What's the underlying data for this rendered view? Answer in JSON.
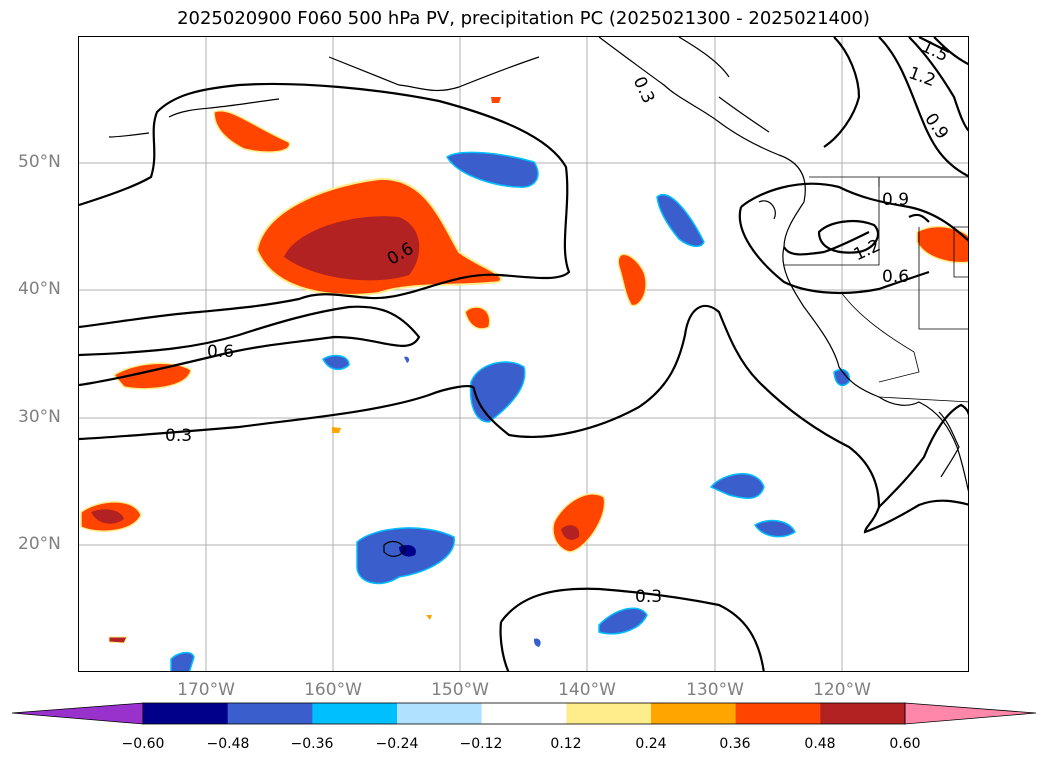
{
  "title": "2025020900 F060 500 hPa PV, precipitation PC (2025021300 - 2025021400)",
  "lat_labels": [
    "50°N",
    "40°N",
    "30°N",
    "20°N"
  ],
  "lon_labels": [
    "170°W",
    "160°W",
    "150°W",
    "140°W",
    "130°W",
    "120°W"
  ],
  "contour_labels": [
    "0.6",
    "0.6",
    "0.3",
    "0.3",
    "0.9",
    "1.2",
    "0.6",
    "0.3",
    "1.5",
    "1.2",
    "0.9"
  ],
  "colorbar": {
    "ticks": [
      "−0.60",
      "−0.48",
      "−0.36",
      "−0.24",
      "−0.12",
      "0.12",
      "0.24",
      "0.36",
      "0.48",
      "0.60"
    ],
    "colors": [
      "#9932CC",
      "#00008B",
      "#3A5FCD",
      "#00BFFF",
      "#B0E2FF",
      "#FFFFFF",
      "#FFEC8B",
      "#FFA500",
      "#FF4500",
      "#B22222",
      "#FF88AA"
    ]
  }
}
